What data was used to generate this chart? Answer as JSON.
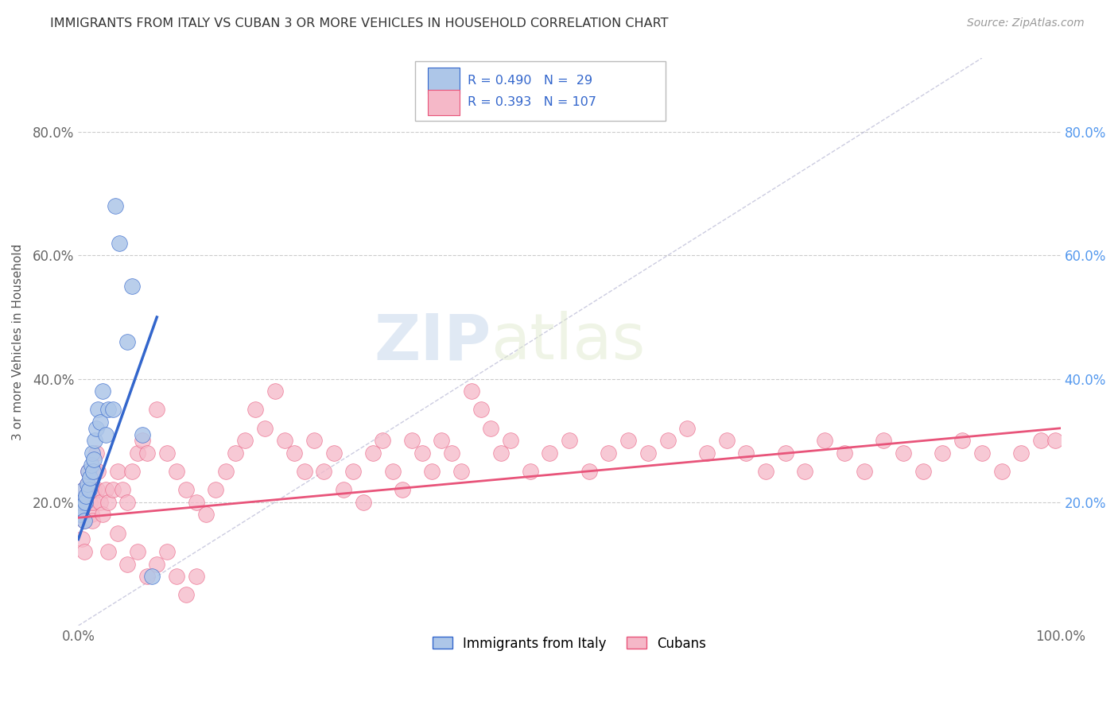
{
  "title": "IMMIGRANTS FROM ITALY VS CUBAN 3 OR MORE VEHICLES IN HOUSEHOLD CORRELATION CHART",
  "source": "Source: ZipAtlas.com",
  "ylabel": "3 or more Vehicles in Household",
  "xlim": [
    0.0,
    1.0
  ],
  "ylim": [
    0.0,
    0.92
  ],
  "x_tick_labels": [
    "0.0%",
    "100.0%"
  ],
  "y_tick_labels": [
    "20.0%",
    "40.0%",
    "60.0%",
    "80.0%"
  ],
  "y_tick_positions": [
    0.2,
    0.4,
    0.6,
    0.8
  ],
  "color_italy": "#adc6e8",
  "color_cuba": "#f5b8c8",
  "line_color_italy": "#3366cc",
  "line_color_cuba": "#e8547a",
  "watermark_zip": "ZIP",
  "watermark_atlas": "atlas",
  "italy_x": [
    0.002,
    0.003,
    0.004,
    0.005,
    0.006,
    0.007,
    0.008,
    0.009,
    0.01,
    0.011,
    0.012,
    0.013,
    0.014,
    0.015,
    0.016,
    0.017,
    0.018,
    0.02,
    0.022,
    0.025,
    0.028,
    0.03,
    0.035,
    0.038,
    0.042,
    0.05,
    0.055,
    0.065,
    0.075
  ],
  "italy_y": [
    0.18,
    0.2,
    0.19,
    0.22,
    0.17,
    0.2,
    0.21,
    0.23,
    0.25,
    0.22,
    0.24,
    0.26,
    0.28,
    0.25,
    0.27,
    0.3,
    0.32,
    0.35,
    0.33,
    0.38,
    0.31,
    0.35,
    0.35,
    0.68,
    0.62,
    0.46,
    0.55,
    0.31,
    0.08
  ],
  "cuba_x": [
    0.002,
    0.003,
    0.004,
    0.005,
    0.006,
    0.007,
    0.008,
    0.009,
    0.01,
    0.011,
    0.012,
    0.013,
    0.014,
    0.015,
    0.016,
    0.017,
    0.018,
    0.019,
    0.02,
    0.022,
    0.025,
    0.028,
    0.03,
    0.035,
    0.04,
    0.045,
    0.05,
    0.055,
    0.06,
    0.065,
    0.07,
    0.08,
    0.09,
    0.1,
    0.11,
    0.12,
    0.13,
    0.14,
    0.15,
    0.16,
    0.17,
    0.18,
    0.19,
    0.2,
    0.21,
    0.22,
    0.23,
    0.24,
    0.25,
    0.26,
    0.27,
    0.28,
    0.29,
    0.3,
    0.31,
    0.32,
    0.33,
    0.34,
    0.35,
    0.36,
    0.37,
    0.38,
    0.39,
    0.4,
    0.41,
    0.42,
    0.43,
    0.44,
    0.46,
    0.48,
    0.5,
    0.52,
    0.54,
    0.56,
    0.58,
    0.6,
    0.62,
    0.64,
    0.66,
    0.68,
    0.7,
    0.72,
    0.74,
    0.76,
    0.78,
    0.8,
    0.82,
    0.84,
    0.86,
    0.88,
    0.9,
    0.92,
    0.94,
    0.96,
    0.98,
    0.995,
    0.03,
    0.04,
    0.05,
    0.06,
    0.07,
    0.08,
    0.09,
    0.1,
    0.11,
    0.12,
    0.004,
    0.006
  ],
  "cuba_y": [
    0.18,
    0.2,
    0.19,
    0.22,
    0.17,
    0.2,
    0.21,
    0.23,
    0.25,
    0.22,
    0.2,
    0.18,
    0.17,
    0.2,
    0.22,
    0.25,
    0.28,
    0.22,
    0.25,
    0.2,
    0.18,
    0.22,
    0.2,
    0.22,
    0.25,
    0.22,
    0.2,
    0.25,
    0.28,
    0.3,
    0.28,
    0.35,
    0.28,
    0.25,
    0.22,
    0.2,
    0.18,
    0.22,
    0.25,
    0.28,
    0.3,
    0.35,
    0.32,
    0.38,
    0.3,
    0.28,
    0.25,
    0.3,
    0.25,
    0.28,
    0.22,
    0.25,
    0.2,
    0.28,
    0.3,
    0.25,
    0.22,
    0.3,
    0.28,
    0.25,
    0.3,
    0.28,
    0.25,
    0.38,
    0.35,
    0.32,
    0.28,
    0.3,
    0.25,
    0.28,
    0.3,
    0.25,
    0.28,
    0.3,
    0.28,
    0.3,
    0.32,
    0.28,
    0.3,
    0.28,
    0.25,
    0.28,
    0.25,
    0.3,
    0.28,
    0.25,
    0.3,
    0.28,
    0.25,
    0.28,
    0.3,
    0.28,
    0.25,
    0.28,
    0.3,
    0.3,
    0.12,
    0.15,
    0.1,
    0.12,
    0.08,
    0.1,
    0.12,
    0.08,
    0.05,
    0.08,
    0.14,
    0.12
  ],
  "italy_line_x": [
    0.0,
    0.08
  ],
  "italy_line_y": [
    0.14,
    0.5
  ],
  "cuba_line_x": [
    0.0,
    1.0
  ],
  "cuba_line_y": [
    0.175,
    0.32
  ]
}
